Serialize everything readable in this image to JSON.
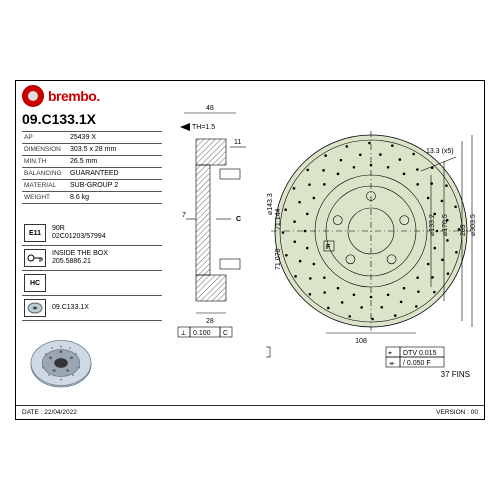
{
  "brand": "brembo.",
  "part_number": "09.C133.1X",
  "spec_rows": [
    {
      "k": "AP",
      "v": "25439 X"
    },
    {
      "k": "DIMENSION",
      "v": "303.5 x 28 mm"
    },
    {
      "k": "MIN.TH",
      "v": "26.5 mm"
    },
    {
      "k": "BALANCING",
      "v": "GUARANTEED"
    },
    {
      "k": "MATERIAL",
      "v": "SUB-GROUP 2"
    },
    {
      "k": "WEIGHT",
      "v": "8.6 kg"
    }
  ],
  "icons": [
    {
      "sym": "E11",
      "t1": "90R",
      "t2": "02C01203/57994"
    },
    {
      "sym": "KEY",
      "t1": "INSIDE THE BOX",
      "t2": "205.5886.21"
    },
    {
      "sym": "HC",
      "t1": "",
      "t2": ""
    },
    {
      "sym": "DISC",
      "t1": "09.C133.1X",
      "t2": ""
    }
  ],
  "footer_left": "DATE : 22/04/2022",
  "footer_right": "VERSION : 00",
  "side_dims": {
    "top_offset": "48",
    "th_note": "TH=1.5",
    "thickness": "28",
    "c_arrow": "C",
    "h1": "11",
    "h2": "7",
    "tol1": "0.100",
    "c_box": "C",
    "tol2": "0.050"
  },
  "front_dims": {
    "bolt_hole": "13.3 (x5)",
    "d1": "⌀143.3",
    "d1b": "71.144",
    "d1c": "71.070",
    "d2": "⌀133.2",
    "d3": "⌀170.5",
    "d4": "289",
    "d5": "⌀303.5",
    "pcd": "108",
    "f_box": "F",
    "dtv": "DTV 0.015",
    "runout": "/ 0.050 F"
  },
  "fins_note": "37 FINS",
  "colors": {
    "brand_red": "#c00000",
    "rotor_fill": "#dbe4c9",
    "line": "#000000",
    "grid": "#555555"
  },
  "drawing": {
    "outer_d": 303.5,
    "pcd": 108,
    "bolt_holes": 5,
    "bolt_d": 13.3,
    "hub_d": 71.1,
    "vent_fins": 37
  }
}
